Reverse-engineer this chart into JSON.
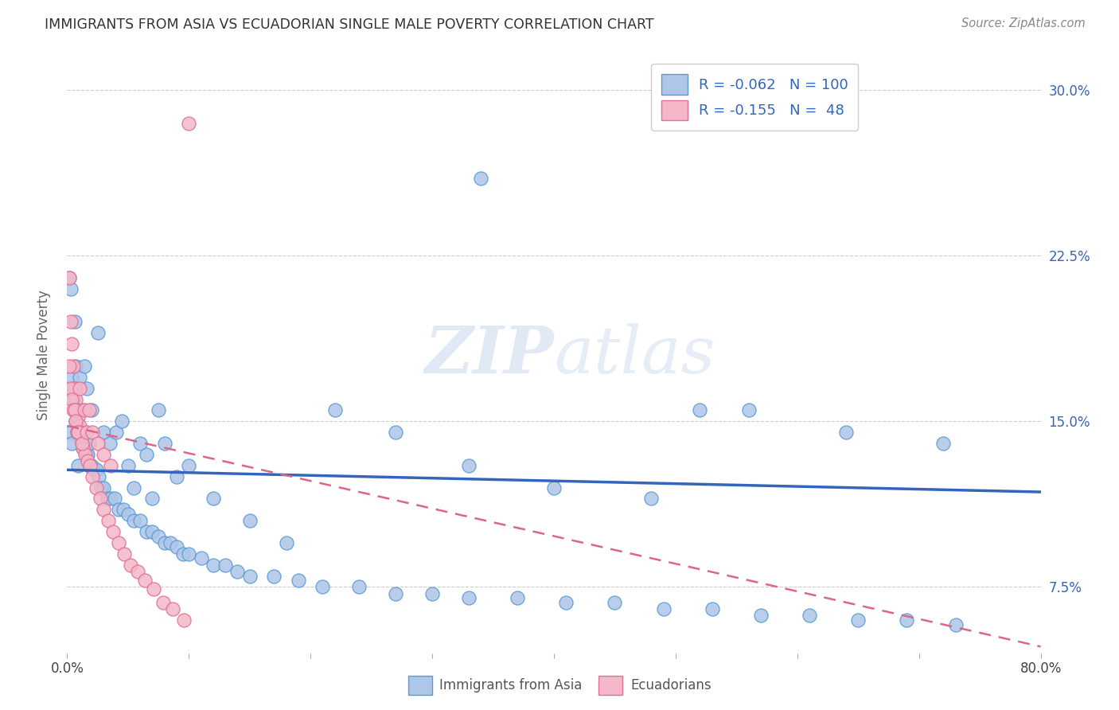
{
  "title": "IMMIGRANTS FROM ASIA VS ECUADORIAN SINGLE MALE POVERTY CORRELATION CHART",
  "source": "Source: ZipAtlas.com",
  "ylabel": "Single Male Poverty",
  "yticks": [
    0.075,
    0.15,
    0.225,
    0.3
  ],
  "ytick_labels": [
    "7.5%",
    "15.0%",
    "22.5%",
    "30.0%"
  ],
  "legend_label1": "Immigrants from Asia",
  "legend_label2": "Ecuadorians",
  "R1": "-0.062",
  "N1": "100",
  "R2": "-0.155",
  "N2": "48",
  "color_asia": "#aec6e8",
  "color_ecuador": "#f4b8c8",
  "color_asia_edge": "#5b9bd5",
  "color_ecuador_edge": "#e07098",
  "color_asia_line": "#3366bb",
  "color_ecuador_line": "#dd6688",
  "color_ytick": "#3366bb",
  "background": "#ffffff",
  "asia_x": [
    0.002,
    0.003,
    0.004,
    0.005,
    0.006,
    0.007,
    0.008,
    0.009,
    0.01,
    0.011,
    0.012,
    0.013,
    0.015,
    0.016,
    0.017,
    0.018,
    0.02,
    0.022,
    0.024,
    0.026,
    0.028,
    0.03,
    0.033,
    0.036,
    0.039,
    0.042,
    0.046,
    0.05,
    0.055,
    0.06,
    0.065,
    0.07,
    0.075,
    0.08,
    0.085,
    0.09,
    0.095,
    0.1,
    0.11,
    0.12,
    0.13,
    0.14,
    0.15,
    0.17,
    0.19,
    0.21,
    0.24,
    0.27,
    0.3,
    0.33,
    0.37,
    0.41,
    0.45,
    0.49,
    0.53,
    0.57,
    0.61,
    0.65,
    0.69,
    0.73,
    0.003,
    0.004,
    0.005,
    0.006,
    0.007,
    0.008,
    0.009,
    0.01,
    0.012,
    0.014,
    0.016,
    0.018,
    0.02,
    0.025,
    0.03,
    0.035,
    0.04,
    0.045,
    0.05,
    0.055,
    0.06,
    0.065,
    0.07,
    0.075,
    0.08,
    0.09,
    0.1,
    0.12,
    0.15,
    0.18,
    0.22,
    0.27,
    0.33,
    0.4,
    0.48,
    0.56,
    0.64,
    0.72,
    0.34,
    0.52
  ],
  "asia_y": [
    0.215,
    0.21,
    0.17,
    0.165,
    0.155,
    0.15,
    0.148,
    0.145,
    0.145,
    0.142,
    0.14,
    0.138,
    0.138,
    0.135,
    0.135,
    0.13,
    0.13,
    0.128,
    0.128,
    0.125,
    0.12,
    0.12,
    0.115,
    0.115,
    0.115,
    0.11,
    0.11,
    0.108,
    0.105,
    0.105,
    0.1,
    0.1,
    0.098,
    0.095,
    0.095,
    0.093,
    0.09,
    0.09,
    0.088,
    0.085,
    0.085,
    0.082,
    0.08,
    0.08,
    0.078,
    0.075,
    0.075,
    0.072,
    0.072,
    0.07,
    0.07,
    0.068,
    0.068,
    0.065,
    0.065,
    0.062,
    0.062,
    0.06,
    0.06,
    0.058,
    0.145,
    0.14,
    0.16,
    0.195,
    0.175,
    0.145,
    0.13,
    0.17,
    0.155,
    0.175,
    0.165,
    0.14,
    0.155,
    0.19,
    0.145,
    0.14,
    0.145,
    0.15,
    0.13,
    0.12,
    0.14,
    0.135,
    0.115,
    0.155,
    0.14,
    0.125,
    0.13,
    0.115,
    0.105,
    0.095,
    0.155,
    0.145,
    0.13,
    0.12,
    0.115,
    0.155,
    0.145,
    0.14,
    0.26,
    0.155
  ],
  "ecuador_x": [
    0.002,
    0.003,
    0.004,
    0.005,
    0.006,
    0.007,
    0.008,
    0.009,
    0.01,
    0.011,
    0.012,
    0.013,
    0.015,
    0.017,
    0.019,
    0.021,
    0.024,
    0.027,
    0.03,
    0.034,
    0.038,
    0.042,
    0.047,
    0.052,
    0.058,
    0.064,
    0.071,
    0.079,
    0.087,
    0.096,
    0.002,
    0.003,
    0.004,
    0.005,
    0.006,
    0.007,
    0.008,
    0.009,
    0.01,
    0.012,
    0.014,
    0.016,
    0.018,
    0.021,
    0.025,
    0.03,
    0.036,
    0.1
  ],
  "ecuador_y": [
    0.215,
    0.195,
    0.185,
    0.175,
    0.165,
    0.16,
    0.155,
    0.152,
    0.148,
    0.145,
    0.14,
    0.138,
    0.135,
    0.132,
    0.13,
    0.125,
    0.12,
    0.115,
    0.11,
    0.105,
    0.1,
    0.095,
    0.09,
    0.085,
    0.082,
    0.078,
    0.074,
    0.068,
    0.065,
    0.06,
    0.175,
    0.165,
    0.16,
    0.155,
    0.155,
    0.15,
    0.145,
    0.145,
    0.165,
    0.14,
    0.155,
    0.145,
    0.155,
    0.145,
    0.14,
    0.135,
    0.13,
    0.285
  ],
  "xlim": [
    0.0,
    0.8
  ],
  "ylim": [
    0.045,
    0.315
  ],
  "trend_asia_x0": 0.0,
  "trend_asia_x1": 0.8,
  "trend_asia_y0": 0.128,
  "trend_asia_y1": 0.118,
  "trend_ecuador_x0": 0.0,
  "trend_ecuador_x1": 0.8,
  "trend_ecuador_y0": 0.148,
  "trend_ecuador_y1": 0.048
}
